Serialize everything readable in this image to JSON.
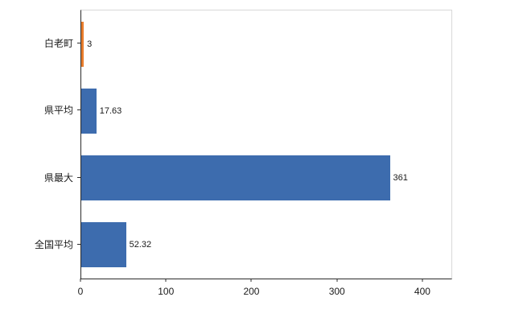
{
  "chart_data": {
    "type": "bar",
    "orientation": "horizontal",
    "title": "",
    "categories": [
      "白老町",
      "県平均",
      "県最大",
      "全国平均"
    ],
    "values": [
      3,
      17.63,
      361,
      52.32
    ],
    "value_labels": [
      "3",
      "17.63",
      "361",
      "52.32"
    ],
    "bar_colors": [
      "#e87d2c",
      "#3d6cae",
      "#3d6cae",
      "#3d6cae"
    ],
    "x_ticks": [
      0,
      100,
      200,
      300,
      400
    ],
    "xlim": [
      0,
      433
    ],
    "xlabel": "",
    "ylabel": "",
    "grid": "off",
    "legend": "none"
  },
  "colors": {
    "bar_blue": "#3d6cae",
    "bar_orange": "#e87d2c",
    "axis_line": "#2b2b2b",
    "frame_line": "#d9d9d9",
    "background": "#ffffff"
  }
}
